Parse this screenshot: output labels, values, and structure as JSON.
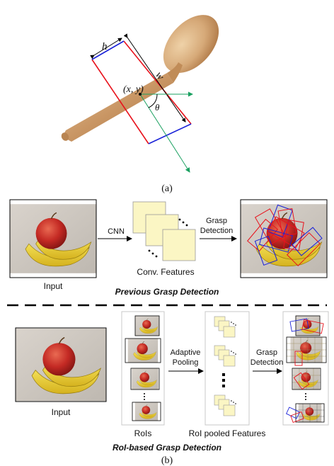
{
  "figure_a": {
    "label_h": "h",
    "label_w": "w",
    "label_xy": "(x, y)",
    "label_theta": "θ",
    "caption": "(a)"
  },
  "previous_pipeline": {
    "input_label": "Input",
    "cnn_label": "CNN",
    "conv_label": "Conv. Features",
    "grasp_label_line1": "Grasp",
    "grasp_label_line2": "Detection",
    "title": "Previous Grasp Detection"
  },
  "roi_pipeline": {
    "input_label": "Input",
    "rois_label": "RoIs",
    "pool_label_line1": "Adaptive",
    "pool_label_line2": "Pooling",
    "pooled_label": "RoI pooled Features",
    "grasp_label_line1": "Grasp",
    "grasp_label_line2": "Detection",
    "title": "RoI-based Grasp Detection"
  },
  "caption_b": "(b)",
  "colors": {
    "rect_red": "#e8121c",
    "rect_blue": "#1a22d8",
    "axis_green": "#1aa060",
    "feature_fill": "#fbf6c4",
    "spoon_wood": "#c79664"
  }
}
